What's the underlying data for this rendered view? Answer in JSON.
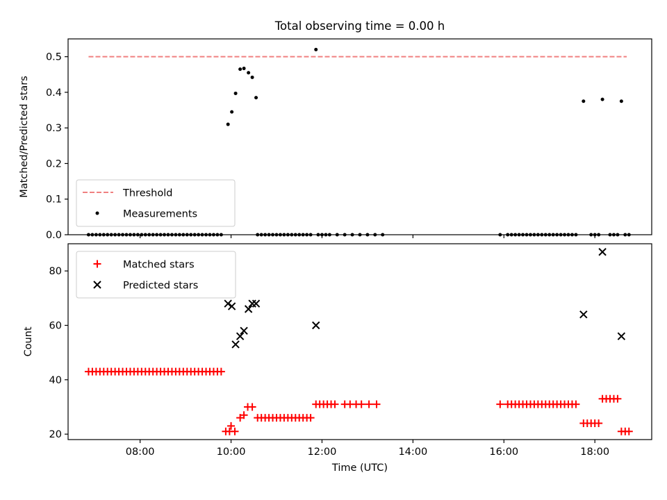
{
  "chart_data": [
    {
      "type": "scatter",
      "title": "Total observing time = 0.00 h",
      "xlabel": "",
      "ylabel": "Matched/Predicted stars",
      "xlim": [
        "06:25",
        "19:15"
      ],
      "ylim": [
        0,
        0.55
      ],
      "yticks": [
        0,
        0.1,
        0.2,
        0.3,
        0.4,
        0.5
      ],
      "ytick_labels": [
        "0.0",
        "0.1",
        "0.2",
        "0.3",
        "0.4",
        "0.5"
      ],
      "xticks": [
        "08:00",
        "10:00",
        "12:00",
        "14:00",
        "16:00",
        "18:00"
      ],
      "legend_position": "lower-left",
      "threshold": {
        "name": "Threshold",
        "color": "#f08080",
        "value": 0.5,
        "x_range": [
          "06:52",
          "18:42"
        ]
      },
      "series": [
        {
          "name": "Measurements",
          "color": "#000000",
          "marker": "dot",
          "points": [
            [
              "06:52",
              0
            ],
            [
              "06:57",
              0
            ],
            [
              "07:02",
              0
            ],
            [
              "07:07",
              0
            ],
            [
              "07:12",
              0
            ],
            [
              "07:17",
              0
            ],
            [
              "07:22",
              0
            ],
            [
              "07:27",
              0
            ],
            [
              "07:32",
              0
            ],
            [
              "07:37",
              0
            ],
            [
              "07:42",
              0
            ],
            [
              "07:47",
              0
            ],
            [
              "07:52",
              0
            ],
            [
              "07:57",
              0
            ],
            [
              "08:02",
              0
            ],
            [
              "08:07",
              0
            ],
            [
              "08:12",
              0
            ],
            [
              "08:17",
              0
            ],
            [
              "08:22",
              0
            ],
            [
              "08:27",
              0
            ],
            [
              "08:32",
              0
            ],
            [
              "08:37",
              0
            ],
            [
              "08:42",
              0
            ],
            [
              "08:47",
              0
            ],
            [
              "08:52",
              0
            ],
            [
              "08:57",
              0
            ],
            [
              "09:02",
              0
            ],
            [
              "09:07",
              0
            ],
            [
              "09:12",
              0
            ],
            [
              "09:17",
              0
            ],
            [
              "09:22",
              0
            ],
            [
              "09:27",
              0
            ],
            [
              "09:32",
              0
            ],
            [
              "09:37",
              0
            ],
            [
              "09:42",
              0
            ],
            [
              "09:47",
              0
            ],
            [
              "09:56",
              0.31
            ],
            [
              "10:01",
              0.345
            ],
            [
              "10:06",
              0.397
            ],
            [
              "10:12",
              0.465
            ],
            [
              "10:17",
              0.467
            ],
            [
              "10:23",
              0.455
            ],
            [
              "10:28",
              0.442
            ],
            [
              "10:33",
              0.385
            ],
            [
              "10:35",
              0
            ],
            [
              "10:40",
              0
            ],
            [
              "10:45",
              0
            ],
            [
              "10:50",
              0
            ],
            [
              "10:55",
              0
            ],
            [
              "11:00",
              0
            ],
            [
              "11:05",
              0
            ],
            [
              "11:10",
              0
            ],
            [
              "11:15",
              0
            ],
            [
              "11:20",
              0
            ],
            [
              "11:25",
              0
            ],
            [
              "11:30",
              0
            ],
            [
              "11:35",
              0
            ],
            [
              "11:40",
              0
            ],
            [
              "11:45",
              0
            ],
            [
              "11:52",
              0.52
            ],
            [
              "11:55",
              0
            ],
            [
              "12:00",
              0
            ],
            [
              "12:05",
              0
            ],
            [
              "12:10",
              0
            ],
            [
              "12:20",
              0
            ],
            [
              "12:30",
              0
            ],
            [
              "12:40",
              0
            ],
            [
              "12:50",
              0
            ],
            [
              "13:00",
              0
            ],
            [
              "13:10",
              0
            ],
            [
              "13:20",
              0
            ],
            [
              "15:55",
              0
            ],
            [
              "16:05",
              0
            ],
            [
              "16:10",
              0
            ],
            [
              "16:15",
              0
            ],
            [
              "16:20",
              0
            ],
            [
              "16:25",
              0
            ],
            [
              "16:30",
              0
            ],
            [
              "16:35",
              0
            ],
            [
              "16:40",
              0
            ],
            [
              "16:45",
              0
            ],
            [
              "16:50",
              0
            ],
            [
              "16:55",
              0
            ],
            [
              "17:00",
              0
            ],
            [
              "17:05",
              0
            ],
            [
              "17:10",
              0
            ],
            [
              "17:15",
              0
            ],
            [
              "17:20",
              0
            ],
            [
              "17:25",
              0
            ],
            [
              "17:30",
              0
            ],
            [
              "17:35",
              0
            ],
            [
              "17:45",
              0.375
            ],
            [
              "17:55",
              0
            ],
            [
              "18:00",
              0
            ],
            [
              "18:05",
              0
            ],
            [
              "18:10",
              0.38
            ],
            [
              "18:20",
              0
            ],
            [
              "18:25",
              0
            ],
            [
              "18:30",
              0
            ],
            [
              "18:35",
              0.375
            ],
            [
              "18:40",
              0
            ],
            [
              "18:45",
              0
            ]
          ]
        }
      ]
    },
    {
      "type": "scatter",
      "title": "",
      "xlabel": "Time (UTC)",
      "ylabel": "Count",
      "xlim": [
        "06:25",
        "19:15"
      ],
      "ylim": [
        18,
        90
      ],
      "yticks": [
        20,
        40,
        60,
        80
      ],
      "ytick_labels": [
        "20",
        "40",
        "60",
        "80"
      ],
      "xticks": [
        "08:00",
        "10:00",
        "12:00",
        "14:00",
        "16:00",
        "18:00"
      ],
      "xtick_labels": [
        "08:00",
        "10:00",
        "12:00",
        "14:00",
        "16:00",
        "18:00"
      ],
      "legend_position": "upper-left",
      "series": [
        {
          "name": "Matched stars",
          "color": "#ff0000",
          "marker": "plus",
          "points": [
            [
              "06:52",
              43
            ],
            [
              "06:57",
              43
            ],
            [
              "07:02",
              43
            ],
            [
              "07:07",
              43
            ],
            [
              "07:12",
              43
            ],
            [
              "07:17",
              43
            ],
            [
              "07:22",
              43
            ],
            [
              "07:27",
              43
            ],
            [
              "07:32",
              43
            ],
            [
              "07:37",
              43
            ],
            [
              "07:42",
              43
            ],
            [
              "07:47",
              43
            ],
            [
              "07:52",
              43
            ],
            [
              "07:57",
              43
            ],
            [
              "08:02",
              43
            ],
            [
              "08:07",
              43
            ],
            [
              "08:12",
              43
            ],
            [
              "08:17",
              43
            ],
            [
              "08:22",
              43
            ],
            [
              "08:27",
              43
            ],
            [
              "08:32",
              43
            ],
            [
              "08:37",
              43
            ],
            [
              "08:42",
              43
            ],
            [
              "08:47",
              43
            ],
            [
              "08:52",
              43
            ],
            [
              "08:57",
              43
            ],
            [
              "09:02",
              43
            ],
            [
              "09:07",
              43
            ],
            [
              "09:12",
              43
            ],
            [
              "09:17",
              43
            ],
            [
              "09:22",
              43
            ],
            [
              "09:27",
              43
            ],
            [
              "09:32",
              43
            ],
            [
              "09:37",
              43
            ],
            [
              "09:42",
              43
            ],
            [
              "09:47",
              43
            ],
            [
              "09:53",
              21
            ],
            [
              "09:58",
              21
            ],
            [
              "10:00",
              23
            ],
            [
              "10:05",
              21
            ],
            [
              "10:12",
              26
            ],
            [
              "10:17",
              27
            ],
            [
              "10:22",
              30
            ],
            [
              "10:28",
              30
            ],
            [
              "10:35",
              26
            ],
            [
              "10:40",
              26
            ],
            [
              "10:45",
              26
            ],
            [
              "10:50",
              26
            ],
            [
              "10:55",
              26
            ],
            [
              "11:00",
              26
            ],
            [
              "11:05",
              26
            ],
            [
              "11:10",
              26
            ],
            [
              "11:15",
              26
            ],
            [
              "11:20",
              26
            ],
            [
              "11:25",
              26
            ],
            [
              "11:30",
              26
            ],
            [
              "11:35",
              26
            ],
            [
              "11:40",
              26
            ],
            [
              "11:45",
              26
            ],
            [
              "11:52",
              31
            ],
            [
              "11:57",
              31
            ],
            [
              "12:02",
              31
            ],
            [
              "12:07",
              31
            ],
            [
              "12:12",
              31
            ],
            [
              "12:17",
              31
            ],
            [
              "12:30",
              31
            ],
            [
              "12:37",
              31
            ],
            [
              "12:45",
              31
            ],
            [
              "12:52",
              31
            ],
            [
              "13:02",
              31
            ],
            [
              "13:12",
              31
            ],
            [
              "15:55",
              31
            ],
            [
              "16:05",
              31
            ],
            [
              "16:10",
              31
            ],
            [
              "16:15",
              31
            ],
            [
              "16:20",
              31
            ],
            [
              "16:25",
              31
            ],
            [
              "16:30",
              31
            ],
            [
              "16:35",
              31
            ],
            [
              "16:40",
              31
            ],
            [
              "16:45",
              31
            ],
            [
              "16:50",
              31
            ],
            [
              "16:55",
              31
            ],
            [
              "17:00",
              31
            ],
            [
              "17:05",
              31
            ],
            [
              "17:10",
              31
            ],
            [
              "17:15",
              31
            ],
            [
              "17:20",
              31
            ],
            [
              "17:25",
              31
            ],
            [
              "17:30",
              31
            ],
            [
              "17:35",
              31
            ],
            [
              "17:45",
              24
            ],
            [
              "17:50",
              24
            ],
            [
              "17:55",
              24
            ],
            [
              "18:00",
              24
            ],
            [
              "18:05",
              24
            ],
            [
              "18:10",
              33
            ],
            [
              "18:15",
              33
            ],
            [
              "18:20",
              33
            ],
            [
              "18:25",
              33
            ],
            [
              "18:30",
              33
            ],
            [
              "18:35",
              21
            ],
            [
              "18:40",
              21
            ],
            [
              "18:45",
              21
            ]
          ]
        },
        {
          "name": "Predicted stars",
          "color": "#000000",
          "marker": "x",
          "points": [
            [
              "09:56",
              68
            ],
            [
              "10:01",
              67
            ],
            [
              "10:06",
              53
            ],
            [
              "10:12",
              56
            ],
            [
              "10:17",
              58
            ],
            [
              "10:23",
              66
            ],
            [
              "10:28",
              68
            ],
            [
              "10:33",
              68
            ],
            [
              "11:52",
              60
            ],
            [
              "17:45",
              64
            ],
            [
              "18:10",
              87
            ],
            [
              "18:35",
              56
            ]
          ]
        }
      ]
    }
  ]
}
